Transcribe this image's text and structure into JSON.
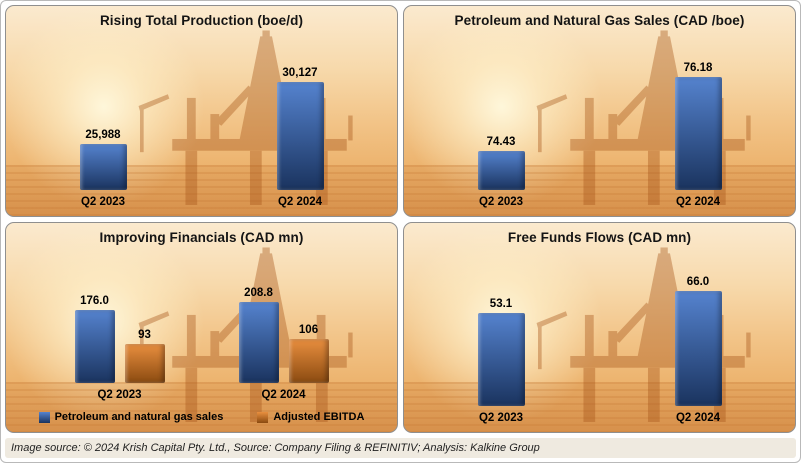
{
  "footer": {
    "source_text": "Image source: © 2024 Krish Capital Pty. Ltd., Source: Company Filing & REFINITIV; Analysis: Kalkine Group"
  },
  "colors": {
    "bar_blue_top": "#5583cf",
    "bar_blue_bottom": "#1a335e",
    "bar_orange_top": "#e98f3f",
    "bar_orange_bottom": "#8a4a10",
    "background_sky": "#f2c488",
    "rig_silhouette": "#a9571b",
    "title_text": "#141414"
  },
  "chart_data": [
    {
      "type": "bar",
      "title": "Rising Total Production (boe/d)",
      "categories": [
        "Q2 2023",
        "Q2 2024"
      ],
      "series": [
        {
          "color_top": "#5583cf",
          "color_bottom": "#1a335e",
          "values": [
            25988,
            30127
          ],
          "labels": [
            "25,988",
            "30,127"
          ]
        }
      ],
      "ylim": [
        23000,
        31600
      ],
      "grid": false,
      "legend_position": "none"
    },
    {
      "type": "bar",
      "title": "Petroleum and Natural Gas Sales (CAD /boe)",
      "categories": [
        "Q2 2023",
        "Q2 2024"
      ],
      "series": [
        {
          "color_top": "#5583cf",
          "color_bottom": "#1a335e",
          "values": [
            74.43,
            76.18
          ],
          "labels": [
            "74.43",
            "76.18"
          ]
        }
      ],
      "ylim": [
        73.5,
        76.6
      ],
      "grid": false,
      "legend_position": "none"
    },
    {
      "type": "bar",
      "title": "Improving Financials (CAD mn)",
      "categories": [
        "Q2 2023",
        "Q2 2024"
      ],
      "series": [
        {
          "name": "Petroleum and natural gas sales",
          "color_top": "#5583cf",
          "color_bottom": "#1a335e",
          "values": [
            176.0,
            208.8
          ],
          "labels": [
            "176.0",
            "208.8"
          ]
        },
        {
          "name": "Adjusted EBITDA",
          "color_top": "#e98f3f",
          "color_bottom": "#8a4a10",
          "values": [
            93,
            106
          ],
          "labels": [
            "93",
            "106"
          ]
        }
      ],
      "ylim": [
        0,
        230
      ],
      "grid": false,
      "legend_position": "bottom"
    },
    {
      "type": "bar",
      "title": "Free Funds Flows (CAD mn)",
      "categories": [
        "Q2 2023",
        "Q2 2024"
      ],
      "series": [
        {
          "color_top": "#5583cf",
          "color_bottom": "#1a335e",
          "values": [
            53.1,
            66.0
          ],
          "labels": [
            "53.1",
            "66.0"
          ]
        }
      ],
      "ylim": [
        0,
        74
      ],
      "grid": false,
      "legend_position": "none"
    }
  ]
}
